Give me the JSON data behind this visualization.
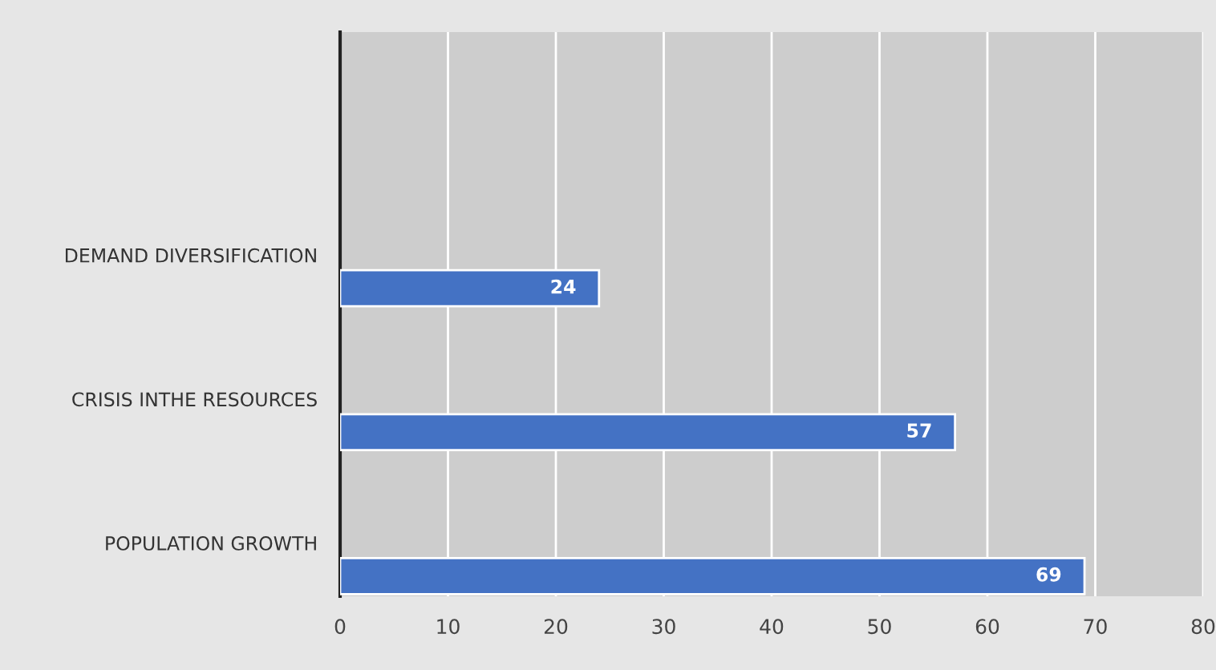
{
  "chart_data": {
    "type": "bar",
    "orientation": "horizontal",
    "categories": [
      "DEMAND DIVERSIFICATION",
      "CRISIS INTHE RESOURCES",
      "POPULATION GROWTH"
    ],
    "values": [
      24,
      57,
      69
    ],
    "color": "#4472c4",
    "xlim": [
      0,
      80
    ],
    "xticks": [
      0,
      10,
      20,
      30,
      40,
      50,
      60,
      70,
      80
    ],
    "grid": "x",
    "data_labels": true
  }
}
